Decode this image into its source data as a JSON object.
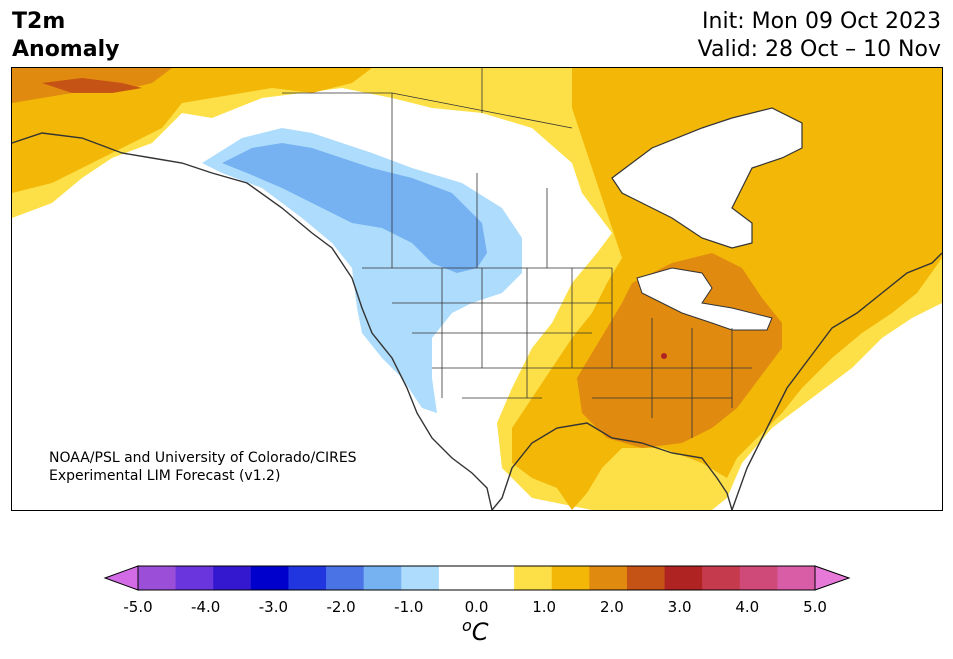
{
  "header": {
    "title_line1": "T2m",
    "title_line2": "Anomaly",
    "init": "Init: Mon 09 Oct 2023",
    "valid": "Valid: 28 Oct – 10 Nov"
  },
  "credit": {
    "line1": "NOAA/PSL and University of Colorado/CIRES",
    "line2": "Experimental LIM Forecast (v1.2)"
  },
  "colorbar": {
    "unit_base": "C",
    "unit_sup": "o",
    "ticks": [
      "-5.0",
      "-4.0",
      "-3.0",
      "-2.0",
      "-1.0",
      "0.0",
      "1.0",
      "2.0",
      "3.0",
      "4.0",
      "5.0"
    ],
    "colors": [
      "#d36be6",
      "#9b4fd8",
      "#6b35dd",
      "#3418d0",
      "#0000cd",
      "#2236e0",
      "#4a73e6",
      "#76b2f2",
      "#aedcfc",
      "#ffffff",
      "#ffffff",
      "#fde047",
      "#f2b707",
      "#e08a10",
      "#c65316",
      "#b02323",
      "#c63a4e",
      "#cf4a78",
      "#d95ca6",
      "#e779d9"
    ]
  },
  "map": {
    "anomaly_colors": {
      "light_yellow": "#fde047",
      "yellow_orange": "#f2b707",
      "orange": "#e08a10",
      "dark_orange": "#c65316",
      "red": "#b02323",
      "light_blue": "#aedcfc",
      "medium_blue": "#76b2f2"
    }
  }
}
